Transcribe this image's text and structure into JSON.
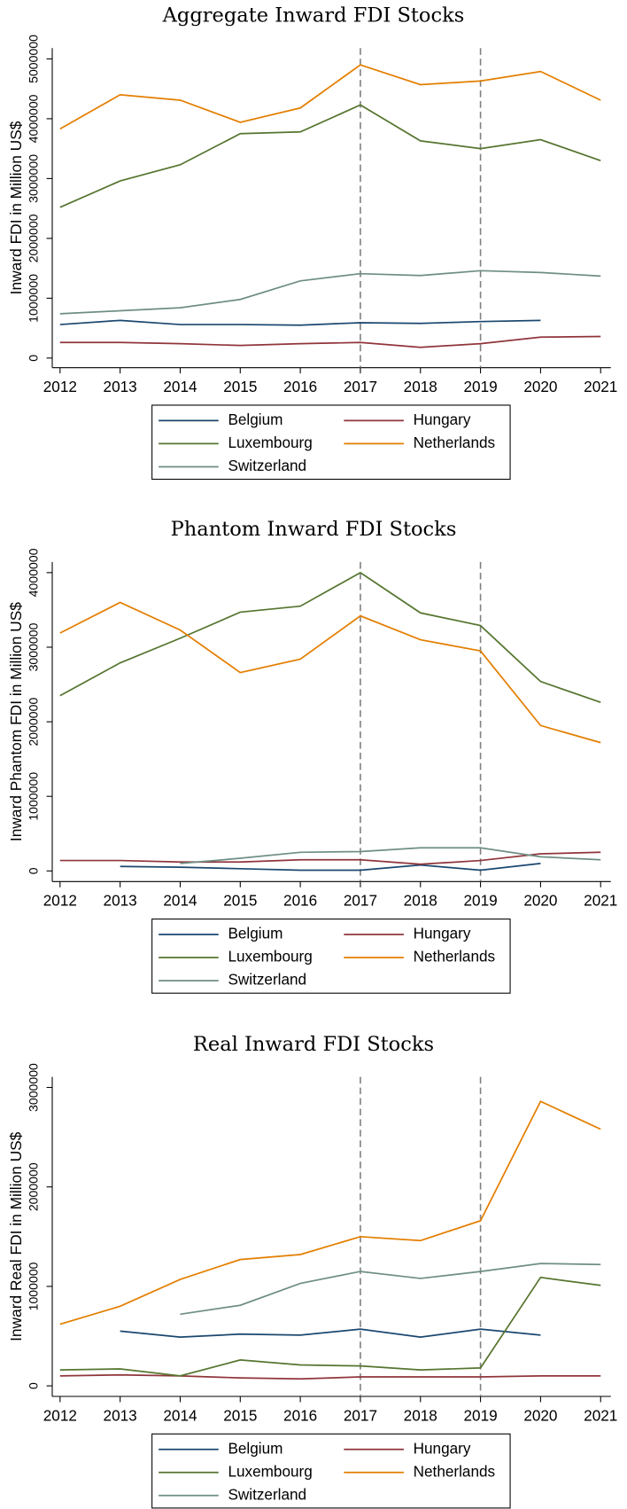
{
  "chart_data": [
    {
      "type": "line",
      "title": "Aggregate Inward FDI Stocks",
      "y_label": "Inward FDI in Million US$",
      "x": [
        2012,
        2013,
        2014,
        2015,
        2016,
        2017,
        2018,
        2019,
        2020,
        2021
      ],
      "xlim": [
        2011.87,
        2021.17
      ],
      "xticks": [
        2012,
        2013,
        2014,
        2015,
        2016,
        2017,
        2018,
        2019,
        2020,
        2021
      ],
      "ylim": [
        -160000,
        5180000
      ],
      "yticks": [
        0,
        1000000,
        2000000,
        3000000,
        4000000,
        5000000
      ],
      "vlines": [
        2017,
        2019
      ],
      "series": [
        {
          "name": "Belgium",
          "color": "#1a476f",
          "values": [
            560000,
            630000,
            560000,
            560000,
            550000,
            590000,
            580000,
            610000,
            630000,
            null
          ]
        },
        {
          "name": "Hungary",
          "color": "#90353b",
          "values": [
            260000,
            260000,
            240000,
            210000,
            240000,
            260000,
            180000,
            240000,
            350000,
            360000
          ]
        },
        {
          "name": "Luxembourg",
          "color": "#55752f",
          "values": [
            2520000,
            2960000,
            3230000,
            3750000,
            3780000,
            4230000,
            3630000,
            3500000,
            3650000,
            3300000
          ]
        },
        {
          "name": "Netherlands",
          "color": "#e37e00",
          "values": [
            3830000,
            4400000,
            4310000,
            3940000,
            4180000,
            4900000,
            4570000,
            4630000,
            4790000,
            4310000
          ]
        },
        {
          "name": "Switzerland",
          "color": "#6e8e84",
          "values": [
            740000,
            790000,
            840000,
            980000,
            1290000,
            1410000,
            1380000,
            1460000,
            1430000,
            1370000
          ]
        }
      ]
    },
    {
      "type": "line",
      "title": "Phantom Inward FDI Stocks",
      "y_label": "Inward Phantom FDI in Million US$",
      "x": [
        2012,
        2013,
        2014,
        2015,
        2016,
        2017,
        2018,
        2019,
        2020,
        2021
      ],
      "xlim": [
        2011.87,
        2021.17
      ],
      "xticks": [
        2012,
        2013,
        2014,
        2015,
        2016,
        2017,
        2018,
        2019,
        2020,
        2021
      ],
      "ylim": [
        -142000,
        4142000
      ],
      "yticks": [
        0,
        1000000,
        2000000,
        3000000,
        4000000
      ],
      "vlines": [
        2017,
        2019
      ],
      "series": [
        {
          "name": "Belgium",
          "color": "#1a476f",
          "values": [
            null,
            60000,
            50000,
            30000,
            10000,
            10000,
            80000,
            10000,
            100000,
            null
          ]
        },
        {
          "name": "Hungary",
          "color": "#90353b",
          "values": [
            140000,
            140000,
            120000,
            120000,
            150000,
            150000,
            90000,
            140000,
            230000,
            250000
          ]
        },
        {
          "name": "Luxembourg",
          "color": "#55752f",
          "values": [
            2350000,
            2790000,
            3120000,
            3470000,
            3550000,
            4000000,
            3460000,
            3290000,
            2540000,
            2260000
          ]
        },
        {
          "name": "Netherlands",
          "color": "#e37e00",
          "values": [
            3190000,
            3600000,
            3230000,
            2660000,
            2840000,
            3420000,
            3100000,
            2950000,
            1950000,
            1720000
          ]
        },
        {
          "name": "Switzerland",
          "color": "#6e8e84",
          "values": [
            null,
            null,
            100000,
            170000,
            250000,
            260000,
            310000,
            310000,
            190000,
            150000
          ]
        }
      ]
    },
    {
      "type": "line",
      "title": "Real Inward FDI Stocks",
      "y_label": "Inward Real FDI in Million US$",
      "x": [
        2012,
        2013,
        2014,
        2015,
        2016,
        2017,
        2018,
        2019,
        2020,
        2021
      ],
      "xlim": [
        2011.87,
        2021.17
      ],
      "xticks": [
        2012,
        2013,
        2014,
        2015,
        2016,
        2017,
        2018,
        2019,
        2020,
        2021
      ],
      "ylim": [
        -106000,
        3106000
      ],
      "yticks": [
        0,
        1000000,
        2000000,
        3000000
      ],
      "vlines": [
        2017,
        2019
      ],
      "series": [
        {
          "name": "Belgium",
          "color": "#1a476f",
          "values": [
            null,
            550000,
            490000,
            520000,
            510000,
            570000,
            490000,
            570000,
            510000,
            null
          ]
        },
        {
          "name": "Hungary",
          "color": "#90353b",
          "values": [
            100000,
            110000,
            100000,
            80000,
            70000,
            90000,
            90000,
            90000,
            100000,
            100000
          ]
        },
        {
          "name": "Luxembourg",
          "color": "#55752f",
          "values": [
            160000,
            170000,
            100000,
            260000,
            210000,
            200000,
            160000,
            180000,
            1090000,
            1010000
          ]
        },
        {
          "name": "Netherlands",
          "color": "#e37e00",
          "values": [
            620000,
            800000,
            1070000,
            1270000,
            1320000,
            1500000,
            1460000,
            1660000,
            2860000,
            2580000
          ]
        },
        {
          "name": "Switzerland",
          "color": "#6e8e84",
          "values": [
            null,
            null,
            720000,
            810000,
            1030000,
            1150000,
            1080000,
            1150000,
            1230000,
            1220000
          ]
        }
      ]
    }
  ]
}
